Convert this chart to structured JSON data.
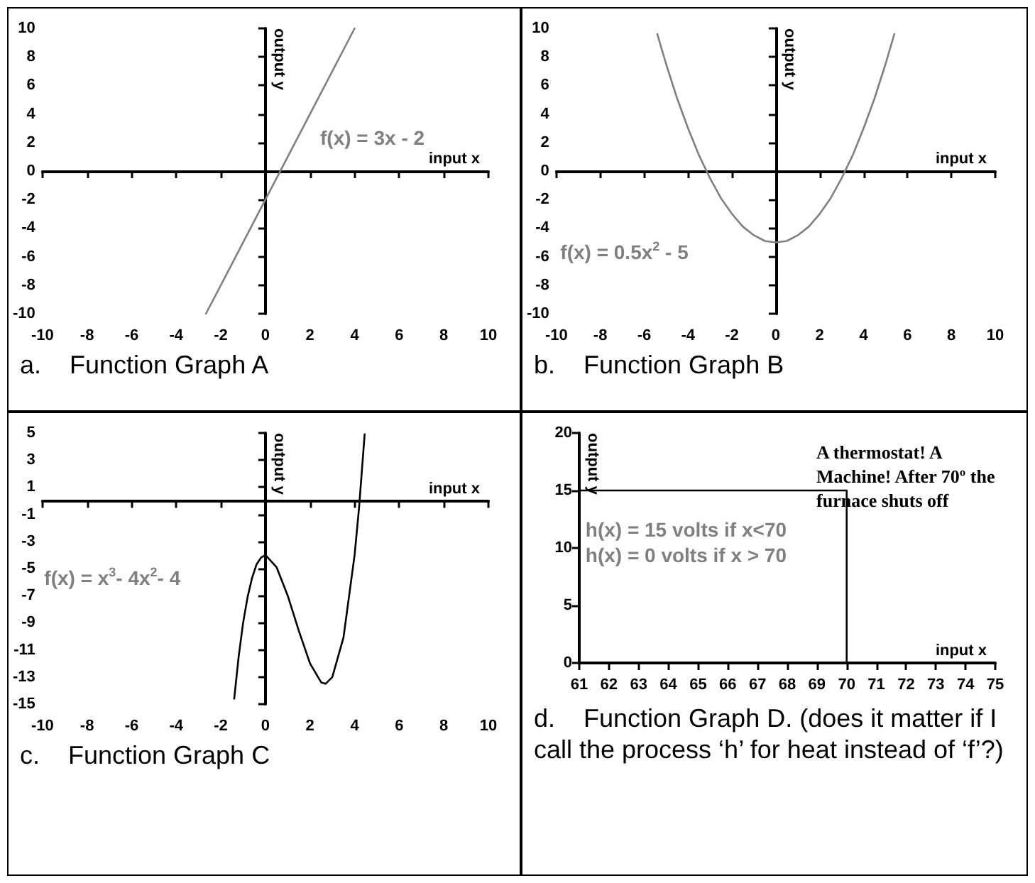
{
  "chart_data": [
    {
      "type": "line",
      "title": "a.    Function Graph A",
      "xlabel": "input x",
      "ylabel": "output y",
      "marker": "none",
      "x": [
        -2.67,
        -2,
        0,
        2,
        4
      ],
      "values": [
        -10,
        -8,
        -2,
        4,
        10
      ],
      "color": "#808080",
      "xlim": [
        -10,
        10
      ],
      "xticks": [
        -10,
        -8,
        -6,
        -4,
        -2,
        0,
        2,
        4,
        6,
        8,
        10
      ],
      "ylim": [
        -10,
        10
      ],
      "yticks": [
        -10,
        -8,
        -6,
        -4,
        -2,
        0,
        2,
        4,
        6,
        8,
        10
      ],
      "annotations": [
        "f(x) = 3x - 2"
      ]
    },
    {
      "type": "line",
      "title": "b.    Function Graph B",
      "xlabel": "input x",
      "ylabel": "output y",
      "marker": "none",
      "x": [
        -5.4,
        -5,
        -4.5,
        -4,
        -3.5,
        -3,
        -2.5,
        -2,
        -1.5,
        -1,
        -0.5,
        0,
        0.5,
        1,
        1.5,
        2,
        2.5,
        3,
        3.5,
        4,
        4.5,
        5,
        5.4
      ],
      "values": [
        9.6,
        7.5,
        5.1,
        3,
        1.1,
        -0.5,
        -1.9,
        -3,
        -3.9,
        -4.5,
        -4.9,
        -5,
        -4.9,
        -4.5,
        -3.9,
        -3,
        -1.9,
        -0.5,
        1.1,
        3,
        5.1,
        7.5,
        9.6
      ],
      "color": "#808080",
      "xlim": [
        -10,
        10
      ],
      "xticks": [
        -10,
        -8,
        -6,
        -4,
        -2,
        0,
        2,
        4,
        6,
        8,
        10
      ],
      "ylim": [
        -10,
        10
      ],
      "yticks": [
        -10,
        -8,
        -6,
        -4,
        -2,
        0,
        2,
        4,
        6,
        8,
        10
      ],
      "annotations": [
        "f(x) = 0.5x$^{2}$ - 5"
      ]
    },
    {
      "type": "line",
      "title": "c.    Function Graph C",
      "xlabel": "input x",
      "ylabel": "output y",
      "marker": "none",
      "x": [
        -1.4,
        -1.2,
        -1,
        -0.8,
        -0.6,
        -0.4,
        -0.2,
        0,
        0.5,
        1,
        1.5,
        2,
        2.5,
        2.7,
        3,
        3.5,
        4,
        4.2,
        4.45
      ],
      "values": [
        -14.6,
        -11.5,
        -9,
        -7.1,
        -5.7,
        -4.7,
        -4.2,
        -4,
        -4.9,
        -7,
        -9.6,
        -12,
        -13.4,
        -13.5,
        -13,
        -10.1,
        -4,
        -0.5,
        4.9
      ],
      "color": "#000000",
      "xlim": [
        -10,
        10
      ],
      "xticks": [
        -10,
        -8,
        -6,
        -4,
        -2,
        0,
        2,
        4,
        6,
        8,
        10
      ],
      "ylim": [
        -15,
        5
      ],
      "yticks": [
        -15,
        -13,
        -11,
        -9,
        -7,
        -5,
        -3,
        -1,
        1,
        3,
        5
      ],
      "annotations": [
        "f(x) = x$^{3}$- 4x$^{2}$- 4"
      ]
    },
    {
      "type": "line",
      "title": "d.    Function Graph D. (does it matter if I call the process ‘h’ for heat instead of ‘f’?)",
      "xlabel": "input x",
      "ylabel": "output y",
      "marker": "none",
      "x": [
        61,
        70,
        70,
        75
      ],
      "values": [
        15,
        15,
        0,
        0
      ],
      "color": "#000000",
      "xlim": [
        61,
        75
      ],
      "xticks": [
        61,
        62,
        63,
        64,
        65,
        66,
        67,
        68,
        69,
        70,
        71,
        72,
        73,
        74,
        75
      ],
      "ylim": [
        0,
        20
      ],
      "yticks": [
        0,
        5,
        10,
        15,
        20
      ],
      "annotations": [
        "A thermostat! A Machine! After 70º the furnace shuts off",
        "h(x) = 15 volts if x<70",
        "h(x) = 0 volts if x > 70"
      ]
    }
  ]
}
